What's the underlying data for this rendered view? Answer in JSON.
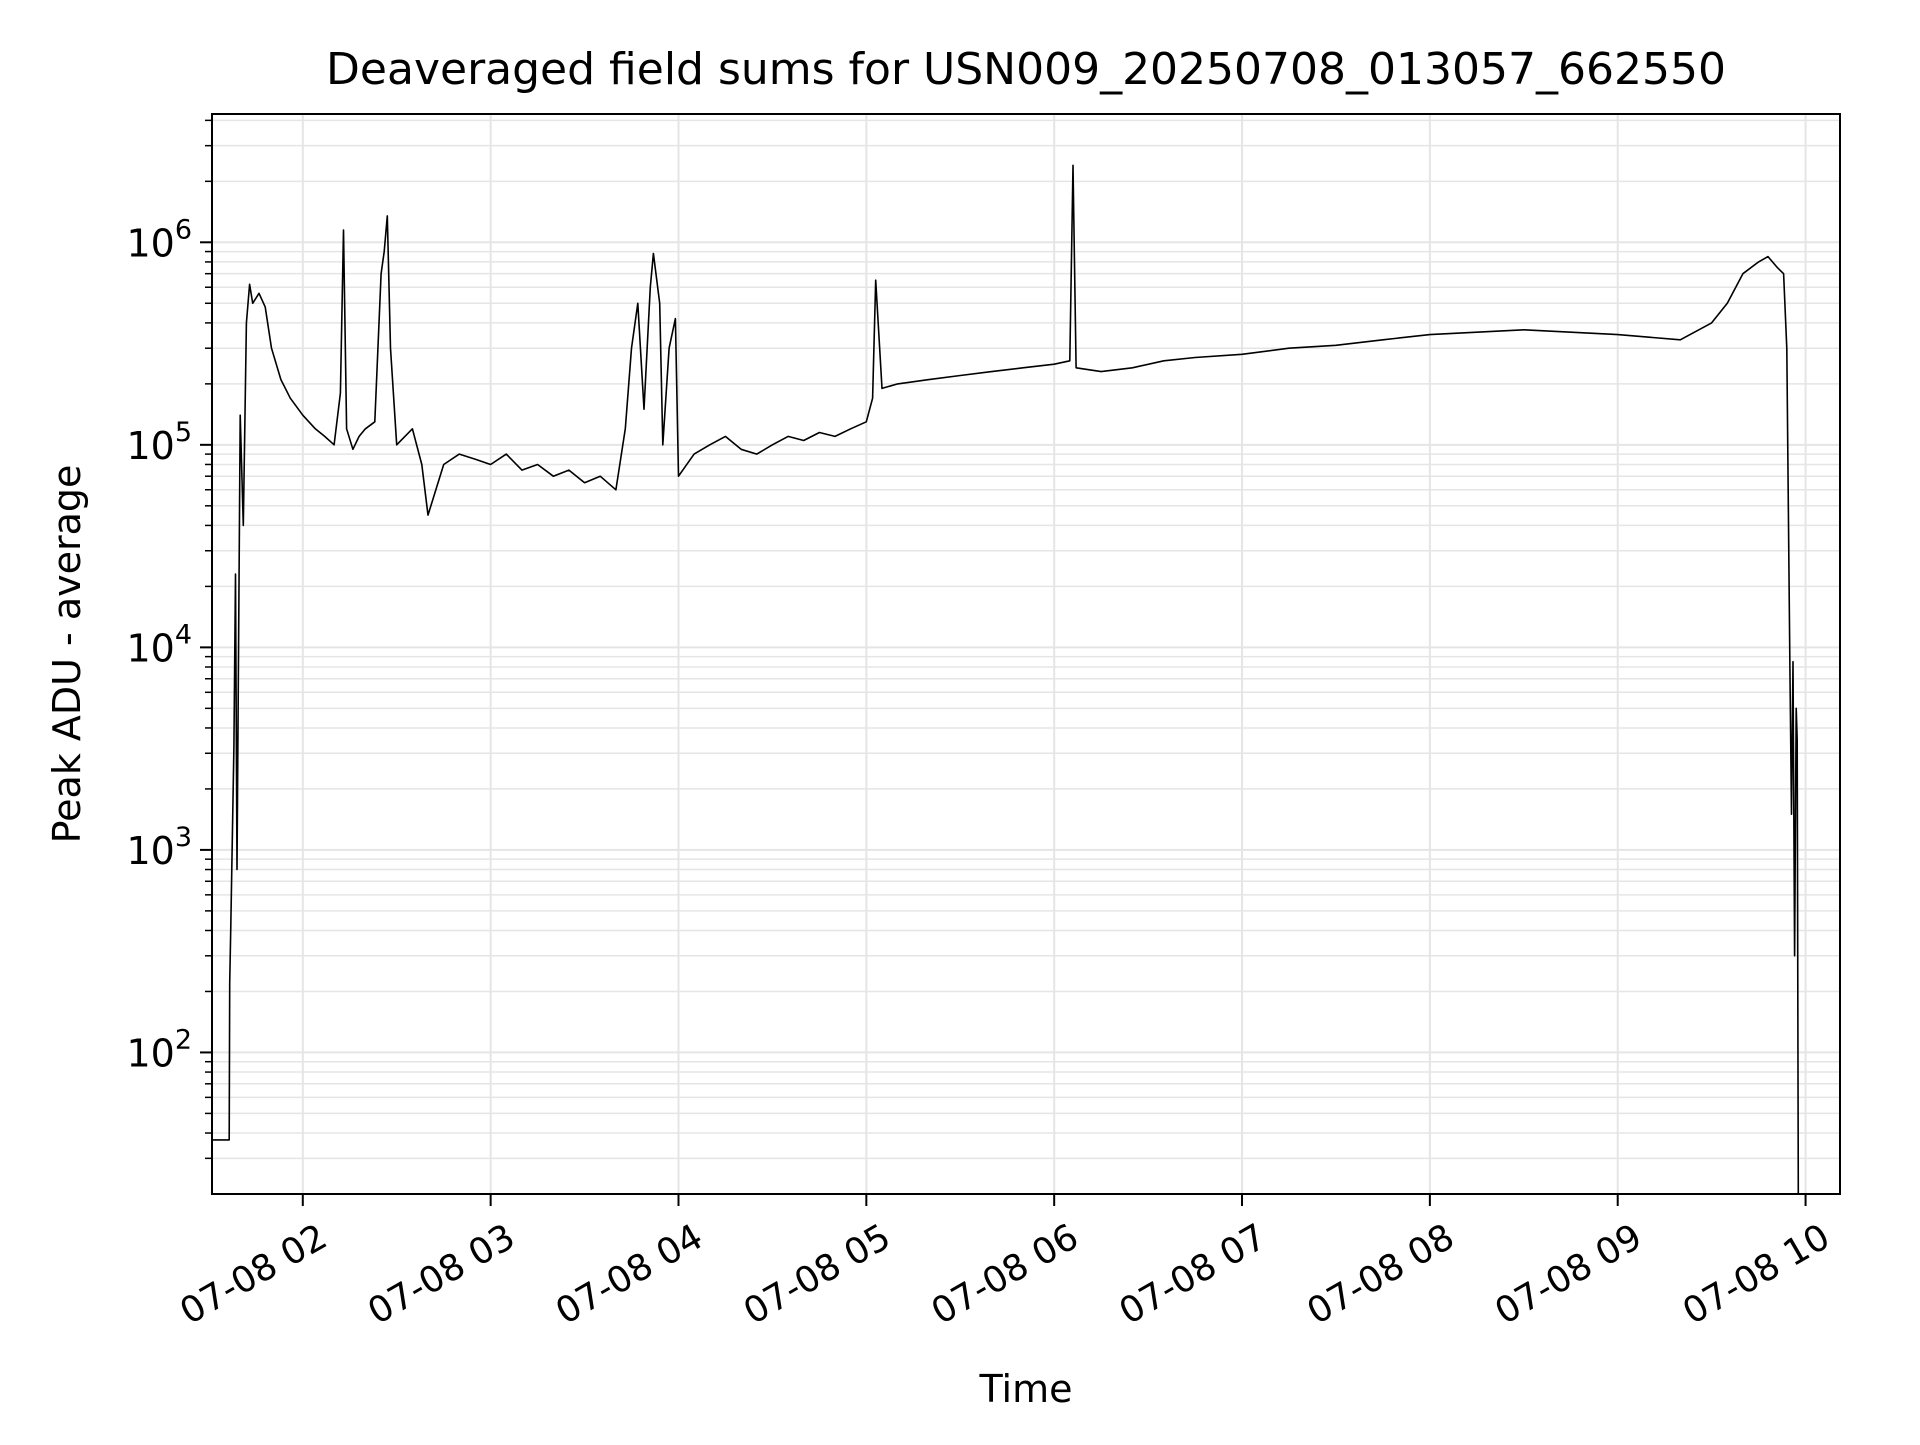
{
  "chart_data": {
    "type": "line",
    "title": "Deaveraged field sums for USN009_20250708_013057_662550",
    "xlabel": "Time",
    "ylabel": "Peak ADU - average",
    "yscale": "log",
    "ylim": [
      20,
      4300000
    ],
    "xlim": [
      "2025-07-08T01:31:00",
      "2025-07-08T10:11:00"
    ],
    "grid": true,
    "grid_minor": true,
    "line_color": "#000000",
    "grid_color": "#e5e5e5",
    "ytick_exponents": [
      2,
      3,
      4,
      5,
      6
    ],
    "xticks": [
      {
        "time": "2025-07-08T02:00:00",
        "label": "07-08 02"
      },
      {
        "time": "2025-07-08T03:00:00",
        "label": "07-08 03"
      },
      {
        "time": "2025-07-08T04:00:00",
        "label": "07-08 04"
      },
      {
        "time": "2025-07-08T05:00:00",
        "label": "07-08 05"
      },
      {
        "time": "2025-07-08T06:00:00",
        "label": "07-08 06"
      },
      {
        "time": "2025-07-08T07:00:00",
        "label": "07-08 07"
      },
      {
        "time": "2025-07-08T08:00:00",
        "label": "07-08 08"
      },
      {
        "time": "2025-07-08T09:00:00",
        "label": "07-08 09"
      },
      {
        "time": "2025-07-08T10:00:00",
        "label": "07-08 10"
      }
    ],
    "series": [
      {
        "name": "",
        "points": [
          [
            "2025-07-08T01:31:00",
            37
          ],
          [
            "2025-07-08T01:36:30",
            37
          ],
          [
            "2025-07-08T01:36:40",
            220
          ],
          [
            "2025-07-08T01:37:00",
            420
          ],
          [
            "2025-07-08T01:38:00",
            3200
          ],
          [
            "2025-07-08T01:38:30",
            23000
          ],
          [
            "2025-07-08T01:39:00",
            800
          ],
          [
            "2025-07-08T01:40:00",
            140000
          ],
          [
            "2025-07-08T01:41:00",
            40000
          ],
          [
            "2025-07-08T01:42:00",
            400000
          ],
          [
            "2025-07-08T01:43:00",
            620000
          ],
          [
            "2025-07-08T01:44:00",
            500000
          ],
          [
            "2025-07-08T01:46:00",
            560000
          ],
          [
            "2025-07-08T01:48:00",
            480000
          ],
          [
            "2025-07-08T01:50:00",
            300000
          ],
          [
            "2025-07-08T01:53:00",
            210000
          ],
          [
            "2025-07-08T01:56:00",
            170000
          ],
          [
            "2025-07-08T02:00:00",
            140000
          ],
          [
            "2025-07-08T02:04:00",
            120000
          ],
          [
            "2025-07-08T02:07:00",
            110000
          ],
          [
            "2025-07-08T02:10:00",
            100000
          ],
          [
            "2025-07-08T02:12:00",
            180000
          ],
          [
            "2025-07-08T02:13:00",
            1150000
          ],
          [
            "2025-07-08T02:14:00",
            120000
          ],
          [
            "2025-07-08T02:16:00",
            95000
          ],
          [
            "2025-07-08T02:18:00",
            110000
          ],
          [
            "2025-07-08T02:20:00",
            120000
          ],
          [
            "2025-07-08T02:23:00",
            130000
          ],
          [
            "2025-07-08T02:25:00",
            700000
          ],
          [
            "2025-07-08T02:26:00",
            900000
          ],
          [
            "2025-07-08T02:27:00",
            1350000
          ],
          [
            "2025-07-08T02:28:00",
            300000
          ],
          [
            "2025-07-08T02:30:00",
            100000
          ],
          [
            "2025-07-08T02:35:00",
            120000
          ],
          [
            "2025-07-08T02:38:00",
            80000
          ],
          [
            "2025-07-08T02:40:00",
            45000
          ],
          [
            "2025-07-08T02:45:00",
            80000
          ],
          [
            "2025-07-08T02:50:00",
            90000
          ],
          [
            "2025-07-08T02:55:00",
            85000
          ],
          [
            "2025-07-08T03:00:00",
            80000
          ],
          [
            "2025-07-08T03:05:00",
            90000
          ],
          [
            "2025-07-08T03:10:00",
            75000
          ],
          [
            "2025-07-08T03:15:00",
            80000
          ],
          [
            "2025-07-08T03:20:00",
            70000
          ],
          [
            "2025-07-08T03:25:00",
            75000
          ],
          [
            "2025-07-08T03:30:00",
            65000
          ],
          [
            "2025-07-08T03:35:00",
            70000
          ],
          [
            "2025-07-08T03:40:00",
            60000
          ],
          [
            "2025-07-08T03:43:00",
            120000
          ],
          [
            "2025-07-08T03:45:00",
            300000
          ],
          [
            "2025-07-08T03:47:00",
            500000
          ],
          [
            "2025-07-08T03:49:00",
            150000
          ],
          [
            "2025-07-08T03:51:00",
            600000
          ],
          [
            "2025-07-08T03:52:00",
            880000
          ],
          [
            "2025-07-08T03:54:00",
            500000
          ],
          [
            "2025-07-08T03:55:00",
            100000
          ],
          [
            "2025-07-08T03:57:00",
            300000
          ],
          [
            "2025-07-08T03:59:00",
            420000
          ],
          [
            "2025-07-08T04:00:00",
            70000
          ],
          [
            "2025-07-08T04:05:00",
            90000
          ],
          [
            "2025-07-08T04:10:00",
            100000
          ],
          [
            "2025-07-08T04:15:00",
            110000
          ],
          [
            "2025-07-08T04:20:00",
            95000
          ],
          [
            "2025-07-08T04:25:00",
            90000
          ],
          [
            "2025-07-08T04:30:00",
            100000
          ],
          [
            "2025-07-08T04:35:00",
            110000
          ],
          [
            "2025-07-08T04:40:00",
            105000
          ],
          [
            "2025-07-08T04:45:00",
            115000
          ],
          [
            "2025-07-08T04:50:00",
            110000
          ],
          [
            "2025-07-08T04:55:00",
            120000
          ],
          [
            "2025-07-08T05:00:00",
            130000
          ],
          [
            "2025-07-08T05:02:00",
            170000
          ],
          [
            "2025-07-08T05:03:00",
            650000
          ],
          [
            "2025-07-08T05:05:00",
            190000
          ],
          [
            "2025-07-08T05:10:00",
            200000
          ],
          [
            "2025-07-08T05:20:00",
            210000
          ],
          [
            "2025-07-08T05:30:00",
            220000
          ],
          [
            "2025-07-08T05:40:00",
            230000
          ],
          [
            "2025-07-08T05:50:00",
            240000
          ],
          [
            "2025-07-08T06:00:00",
            250000
          ],
          [
            "2025-07-08T06:05:00",
            260000
          ],
          [
            "2025-07-08T06:06:00",
            2400000
          ],
          [
            "2025-07-08T06:07:00",
            240000
          ],
          [
            "2025-07-08T06:15:00",
            230000
          ],
          [
            "2025-07-08T06:25:00",
            240000
          ],
          [
            "2025-07-08T06:35:00",
            260000
          ],
          [
            "2025-07-08T06:45:00",
            270000
          ],
          [
            "2025-07-08T07:00:00",
            280000
          ],
          [
            "2025-07-08T07:15:00",
            300000
          ],
          [
            "2025-07-08T07:30:00",
            310000
          ],
          [
            "2025-07-08T07:45:00",
            330000
          ],
          [
            "2025-07-08T08:00:00",
            350000
          ],
          [
            "2025-07-08T08:15:00",
            360000
          ],
          [
            "2025-07-08T08:30:00",
            370000
          ],
          [
            "2025-07-08T08:45:00",
            360000
          ],
          [
            "2025-07-08T09:00:00",
            350000
          ],
          [
            "2025-07-08T09:10:00",
            340000
          ],
          [
            "2025-07-08T09:20:00",
            330000
          ],
          [
            "2025-07-08T09:30:00",
            400000
          ],
          [
            "2025-07-08T09:35:00",
            500000
          ],
          [
            "2025-07-08T09:40:00",
            700000
          ],
          [
            "2025-07-08T09:45:00",
            800000
          ],
          [
            "2025-07-08T09:48:00",
            850000
          ],
          [
            "2025-07-08T09:51:00",
            750000
          ],
          [
            "2025-07-08T09:53:00",
            700000
          ],
          [
            "2025-07-08T09:54:00",
            300000
          ],
          [
            "2025-07-08T09:55:00",
            8000
          ],
          [
            "2025-07-08T09:55:30",
            1500
          ],
          [
            "2025-07-08T09:56:00",
            8500
          ],
          [
            "2025-07-08T09:56:30",
            300
          ],
          [
            "2025-07-08T09:57:00",
            5000
          ],
          [
            "2025-07-08T09:57:20",
            3500
          ],
          [
            "2025-07-08T09:57:40",
            20
          ]
        ]
      }
    ]
  }
}
